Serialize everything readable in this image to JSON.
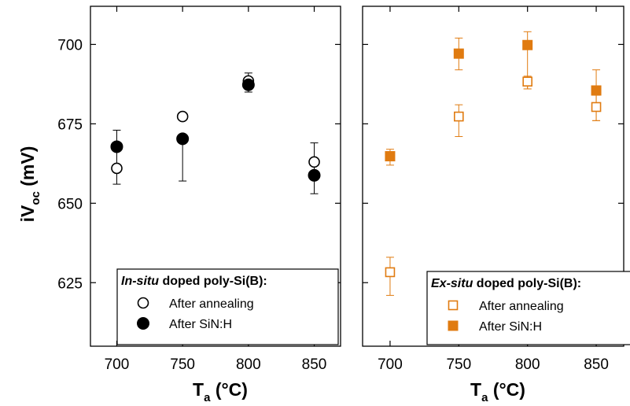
{
  "chart_data": [
    {
      "type": "scatter",
      "panel": "left",
      "xlabel": "T",
      "xlabel_sub": "a",
      "xlabel_unit": " (°C)",
      "ylabel": "iV",
      "ylabel_sub": "oc",
      "ylabel_unit": " (mV)",
      "xlim": [
        680,
        870
      ],
      "ylim": [
        605,
        712
      ],
      "xticks": [
        700,
        750,
        800,
        850
      ],
      "yticks": [
        625,
        650,
        675,
        700
      ],
      "grid": false,
      "legend": {
        "placement": "bottom-right",
        "title_italic": "In-situ",
        "title_rest": " doped poly-Si(B):"
      },
      "color": "#000000",
      "series": [
        {
          "name": "After annealing",
          "marker": "circle-open",
          "x": [
            700,
            750,
            800,
            850
          ],
          "y": [
            661,
            677.3,
            688.5,
            663
          ],
          "err_low": [
            null,
            null,
            null,
            653
          ],
          "err_high": [
            null,
            null,
            null,
            669
          ]
        },
        {
          "name": "After SiN:H",
          "marker": "circle-filled",
          "x": [
            700,
            750,
            800,
            850
          ],
          "y": [
            667.8,
            670.3,
            687.3,
            658.8
          ],
          "err_low": [
            656,
            657,
            685,
            null
          ],
          "err_high": [
            673,
            null,
            691,
            null
          ]
        }
      ]
    },
    {
      "type": "scatter",
      "panel": "right",
      "xlabel": "T",
      "xlabel_sub": "a",
      "xlabel_unit": " (°C)",
      "xlim": [
        680,
        870
      ],
      "ylim": [
        605,
        712
      ],
      "xticks": [
        700,
        750,
        800,
        850
      ],
      "yticks": [
        625,
        650,
        675,
        700
      ],
      "grid": false,
      "legend": {
        "placement": "bottom-right",
        "title_italic": "Ex-situ",
        "title_rest": " doped poly-Si(B):"
      },
      "color": "#e07b10",
      "series": [
        {
          "name": "After annealing",
          "marker": "square-open",
          "x": [
            700,
            750,
            800,
            850
          ],
          "y": [
            628.3,
            677.3,
            688.3,
            680.3
          ],
          "err_low": [
            621,
            671,
            686,
            676
          ],
          "err_high": [
            633,
            681,
            690,
            684
          ]
        },
        {
          "name": "After SiN:H",
          "marker": "square-filled",
          "x": [
            700,
            750,
            800,
            850
          ],
          "y": [
            664.8,
            697.1,
            699.8,
            685.5
          ],
          "err_low": [
            662,
            692,
            686,
            676
          ],
          "err_high": [
            667,
            702,
            704,
            692
          ]
        }
      ]
    }
  ]
}
